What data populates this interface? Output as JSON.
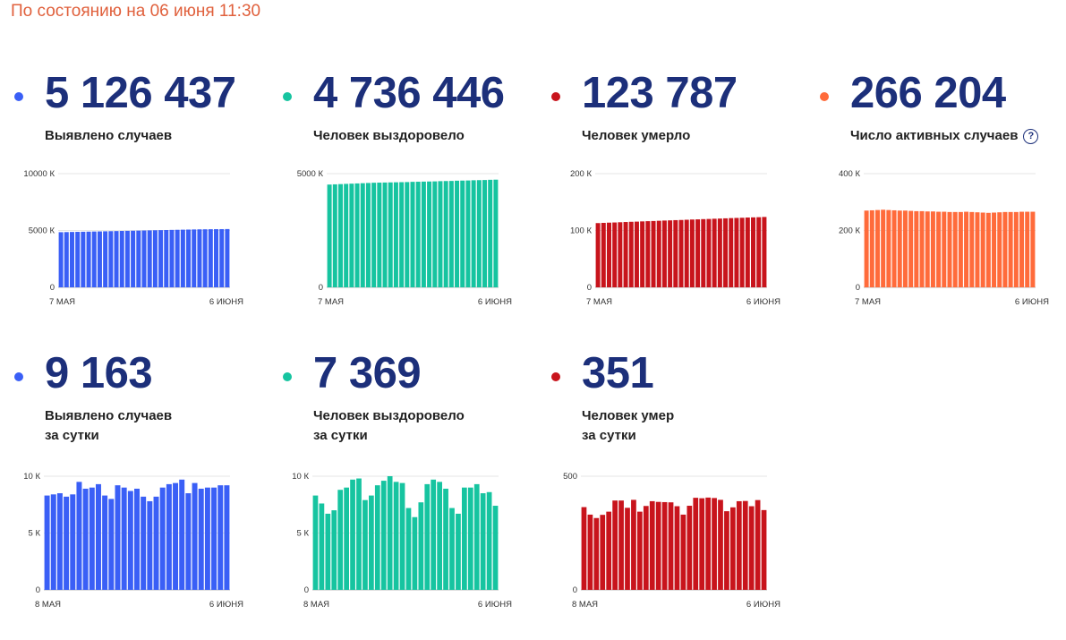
{
  "header": {
    "as_of": "По состоянию на 06 июня 11:30"
  },
  "colors": {
    "cases": "#3a5ff6",
    "recovered": "#16c4a0",
    "deaths": "#c8141c",
    "active": "#ff6b3b"
  },
  "cards": [
    {
      "id": "cases-total",
      "number": "5 126 437",
      "label_line1": "Выявлено случаев",
      "label_line2": "",
      "color": "cases",
      "help": ""
    },
    {
      "id": "recovered-total",
      "number": "4 736 446",
      "label_line1": "Человек выздоровело",
      "label_line2": "",
      "color": "recovered",
      "help": ""
    },
    {
      "id": "deaths-total",
      "number": "123 787",
      "label_line1": "Человек умерло",
      "label_line2": "",
      "color": "deaths",
      "help": ""
    },
    {
      "id": "active-total",
      "number": "266 204",
      "label_line1": "Число активных случаев",
      "label_line2": "",
      "color": "active",
      "help": "?"
    },
    {
      "id": "cases-daily",
      "number": "9 163",
      "label_line1": "Выявлено случаев",
      "label_line2": "за сутки",
      "color": "cases",
      "help": ""
    },
    {
      "id": "recovered-daily",
      "number": "7 369",
      "label_line1": "Человек выздоровело",
      "label_line2": "за сутки",
      "color": "recovered",
      "help": ""
    },
    {
      "id": "deaths-daily",
      "number": "351",
      "label_line1": "Человек умер",
      "label_line2": "за сутки",
      "color": "deaths",
      "help": ""
    }
  ],
  "chart_data": [
    {
      "type": "bar",
      "card": "cases-total",
      "ylim": [
        0,
        10000
      ],
      "y_ticks": [
        0,
        5000,
        10000
      ],
      "y_tick_labels": [
        "0",
        "5000 К",
        "10000 К"
      ],
      "x_start_label": "7 МАЯ",
      "x_end_label": "6 ИЮНЯ",
      "grid": true,
      "legend": "none",
      "values": [
        4850,
        4860,
        4870,
        4880,
        4890,
        4900,
        4910,
        4920,
        4930,
        4940,
        4950,
        4960,
        4970,
        4980,
        4990,
        5000,
        5010,
        5020,
        5030,
        5040,
        5050,
        5060,
        5070,
        5080,
        5090,
        5100,
        5105,
        5110,
        5115,
        5120,
        5126
      ]
    },
    {
      "type": "bar",
      "card": "recovered-total",
      "ylim": [
        0,
        5000
      ],
      "y_ticks": [
        0,
        5000
      ],
      "y_tick_labels": [
        "0",
        "5000 К"
      ],
      "x_start_label": "7 МАЯ",
      "x_end_label": "6 ИЮНЯ",
      "grid": true,
      "legend": "none",
      "values": [
        4520,
        4530,
        4540,
        4550,
        4560,
        4570,
        4580,
        4590,
        4600,
        4605,
        4610,
        4615,
        4620,
        4625,
        4630,
        4640,
        4645,
        4650,
        4655,
        4660,
        4670,
        4675,
        4680,
        4690,
        4695,
        4700,
        4710,
        4715,
        4720,
        4730,
        4736
      ]
    },
    {
      "type": "bar",
      "card": "deaths-total",
      "ylim": [
        0,
        200
      ],
      "y_ticks": [
        0,
        100,
        200
      ],
      "y_tick_labels": [
        "0",
        "100 К",
        "200 К"
      ],
      "x_start_label": "7 МАЯ",
      "x_end_label": "6 ИЮНЯ",
      "grid": true,
      "legend": "none",
      "values": [
        113.0,
        113.4,
        113.8,
        114.1,
        114.5,
        114.9,
        115.3,
        115.6,
        116.0,
        116.4,
        116.7,
        117.1,
        117.5,
        117.8,
        118.2,
        118.5,
        118.9,
        119.3,
        119.6,
        120.0,
        120.3,
        120.7,
        121.0,
        121.4,
        121.8,
        122.1,
        122.4,
        122.8,
        123.1,
        123.4,
        123.8
      ]
    },
    {
      "type": "bar",
      "card": "active-total",
      "ylim": [
        0,
        400
      ],
      "y_ticks": [
        0,
        200,
        400
      ],
      "y_tick_labels": [
        "0",
        "200 К",
        "400 К"
      ],
      "x_start_label": "7 МАЯ",
      "x_end_label": "6 ИЮНЯ",
      "grid": true,
      "legend": "none",
      "values": [
        270,
        271,
        272,
        273,
        272,
        271,
        270,
        270,
        269,
        268,
        268,
        267,
        267,
        266,
        266,
        265,
        265,
        265,
        266,
        265,
        264,
        263,
        262,
        263,
        264,
        265,
        265,
        265,
        266,
        266,
        266
      ]
    },
    {
      "type": "bar",
      "card": "cases-daily",
      "ylim": [
        0,
        10
      ],
      "y_ticks": [
        0,
        5,
        10
      ],
      "y_tick_labels": [
        "0",
        "5 К",
        "10 К"
      ],
      "x_start_label": "8 МАЯ",
      "x_end_label": "6 ИЮНЯ",
      "grid": true,
      "legend": "none",
      "values": [
        8.3,
        8.4,
        8.5,
        8.2,
        8.4,
        9.5,
        8.9,
        9.0,
        9.3,
        8.3,
        8.0,
        9.2,
        9.0,
        8.7,
        8.9,
        8.2,
        7.8,
        8.2,
        9.0,
        9.3,
        9.4,
        9.7,
        8.5,
        9.4,
        8.9,
        9.0,
        9.0,
        9.2,
        9.2
      ]
    },
    {
      "type": "bar",
      "card": "recovered-daily",
      "ylim": [
        0,
        10
      ],
      "y_ticks": [
        0,
        5,
        10
      ],
      "y_tick_labels": [
        "0",
        "5 К",
        "10 К"
      ],
      "x_start_label": "8 МАЯ",
      "x_end_label": "6 ИЮНЯ",
      "grid": true,
      "legend": "none",
      "values": [
        8.3,
        7.6,
        6.7,
        7.0,
        8.8,
        9.0,
        9.7,
        9.8,
        7.9,
        8.3,
        9.2,
        9.6,
        10.0,
        9.5,
        9.4,
        7.2,
        6.4,
        7.7,
        9.3,
        9.7,
        9.5,
        8.9,
        7.2,
        6.7,
        9.0,
        9.0,
        9.3,
        8.5,
        8.6,
        7.4
      ]
    },
    {
      "type": "bar",
      "card": "deaths-daily",
      "ylim": [
        0,
        500
      ],
      "y_ticks": [
        0,
        500
      ],
      "y_tick_labels": [
        "0",
        "500"
      ],
      "x_start_label": "8 МАЯ",
      "x_end_label": "6 ИЮНЯ",
      "grid": true,
      "legend": "none",
      "values": [
        364,
        331,
        316,
        330,
        344,
        393,
        393,
        361,
        396,
        344,
        369,
        390,
        387,
        386,
        385,
        368,
        331,
        370,
        405,
        403,
        406,
        404,
        396,
        346,
        363,
        390,
        391,
        368,
        395,
        351
      ]
    }
  ]
}
